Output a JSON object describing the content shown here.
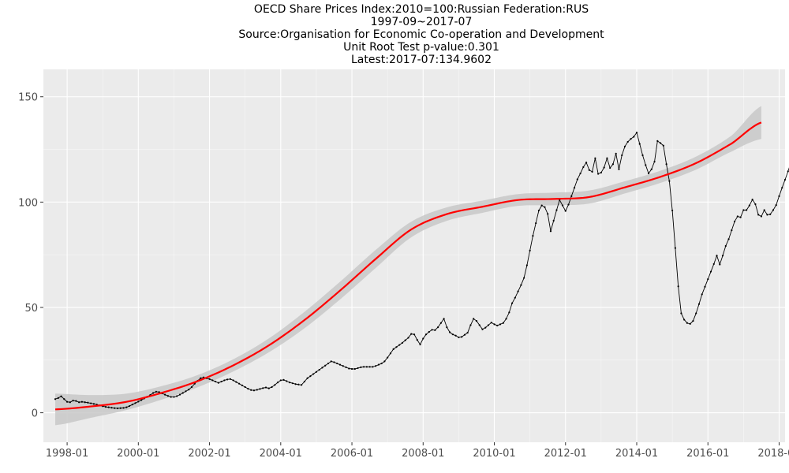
{
  "titles": {
    "line1": "OECD Share Prices Index:2010=100:Russian Federation:RUS",
    "line2": "1997-09~2017-07",
    "line3": "Source:Organisation for Economic Co-operation and Development",
    "line4": "Unit Root Test p-value:0.301",
    "line5": "Latest:2017-07:134.9602"
  },
  "chart_data": {
    "type": "line",
    "title": "OECD Share Prices Index:2010=100:Russian Federation:RUS",
    "xlabel": "",
    "ylabel": "",
    "grid": true,
    "legend": "none",
    "xlim": [
      "1997-05",
      "2018-03"
    ],
    "ylim": [
      -14,
      163
    ],
    "x_ticks": [
      "1998-01",
      "2000-01",
      "2002-01",
      "2004-01",
      "2006-01",
      "2008-01",
      "2010-01",
      "2012-01",
      "2014-01",
      "2016-01",
      "2018-01"
    ],
    "y_ticks": [
      0,
      50,
      100,
      150
    ],
    "series": [
      {
        "color": "#000000",
        "style": "line-with-points",
        "start": "1997-09",
        "freq": "monthly",
        "values": [
          6.5,
          7,
          7.8,
          6.5,
          5.2,
          5,
          5.8,
          5.6,
          5,
          5.2,
          5,
          4.8,
          4.5,
          4.2,
          3.9,
          3.5,
          3.1,
          2.8,
          2.6,
          2.4,
          2.2,
          2.1,
          2.2,
          2.3,
          2.6,
          3.2,
          3.9,
          4.6,
          5.3,
          6,
          6.8,
          7.6,
          8.4,
          9.4,
          10,
          9.8,
          9.2,
          8.6,
          8,
          7.5,
          7.5,
          7.9,
          8.6,
          9.4,
          10.2,
          11,
          12.2,
          13.8,
          15.2,
          16.4,
          16.8,
          16.4,
          16,
          15.4,
          14.8,
          14.2,
          14.8,
          15.4,
          15.8,
          16,
          15.4,
          14.6,
          13.8,
          13,
          12.2,
          11.4,
          10.8,
          10.6,
          10.9,
          11.3,
          11.7,
          12,
          11.6,
          12.2,
          13.2,
          14.4,
          15.4,
          15.6,
          15,
          14.4,
          14,
          13.6,
          13.4,
          13.2,
          14.8,
          16.4,
          17.4,
          18.4,
          19.4,
          20.4,
          21.4,
          22.4,
          23.4,
          24.4,
          24,
          23.4,
          22.8,
          22.2,
          21.6,
          21,
          20.8,
          20.8,
          21.2,
          21.6,
          21.8,
          21.8,
          21.8,
          21.8,
          22.2,
          22.8,
          23.4,
          24.4,
          26.2,
          28.2,
          30.2,
          31.2,
          32.2,
          33.2,
          34.4,
          35.6,
          37.4,
          37.2,
          34.6,
          32.4,
          35.2,
          37.2,
          38.4,
          39.4,
          39.2,
          40.6,
          42.6,
          44.6,
          40.6,
          38.2,
          37.2,
          36.6,
          35.8,
          36,
          37,
          38,
          41.6,
          44.6,
          43.6,
          41.6,
          39.6,
          40.4,
          41.6,
          42.8,
          42,
          41.4,
          42,
          42.6,
          44.6,
          47.6,
          52,
          54.6,
          57.6,
          60.6,
          64,
          70,
          77,
          84,
          90,
          96,
          98.4,
          97.6,
          94.4,
          86.2,
          91.2,
          96.2,
          101,
          98.4,
          95.8,
          98.8,
          102.8,
          106.8,
          110.8,
          113.6,
          116.6,
          118.8,
          115.2,
          114.4,
          120.8,
          113.4,
          114,
          116.4,
          120.8,
          116.2,
          118,
          123,
          115.6,
          122.2,
          126.4,
          128.6,
          130,
          131,
          133,
          127.6,
          122.2,
          117.6,
          113.6,
          115.6,
          119.2,
          129,
          128,
          126.8,
          118,
          110,
          96,
          78.2,
          60,
          47.2,
          44.2,
          42.6,
          42.2,
          43.6,
          47.2,
          51.6,
          56.2,
          59.8,
          63.4,
          67,
          70.6,
          74.6,
          70.4,
          74.6,
          79.2,
          82.4,
          86.6,
          90.8,
          93.2,
          92.8,
          96.2,
          96.2,
          98.4,
          101.2,
          99,
          94,
          93.2,
          96.2,
          94,
          94.2,
          96.2,
          98.6,
          102.8,
          106.8,
          110.6,
          114.6,
          118.8,
          120.6,
          122.4,
          123.6,
          124.6,
          125.4,
          122,
          117.4,
          118,
          116,
          117,
          115.2,
          112,
          107.2,
          102.2,
          99.6,
          98.8,
          98.2,
          101.2,
          98.2,
          101.6,
          104.4,
          108.4,
          110,
          109.6,
          104.6,
          100.2,
          94.8,
          93.2,
          94,
          96.4,
          98.8,
          100.2,
          101.4,
          102.6,
          103.8,
          104.4,
          103.8,
          101.2,
          100.8,
          103.8,
          103.4,
          106.6,
          105.8,
          104.2,
          101.6,
          97.4,
          93.2,
          96.8,
          96.2,
          96,
          100.6,
          102.4,
          102,
          105.2,
          105.2,
          104,
          104.4,
          103,
          103.4,
          100.8,
          96.2,
          92.8,
          94.4,
          94.8,
          96.8,
          99.6,
          101.6,
          104.4,
          103.4,
          100.6,
          97.8,
          96.4,
          99.8,
          98.2,
          96.6,
          98.4,
          101.6,
          106.4,
          104.6,
          102.6,
          108.6,
          117.4,
          122.8,
          118,
          116,
          117.4,
          117,
          116,
          114.4,
          116,
          118.4,
          120.8,
          117.8,
          117.8,
          119.6,
          120.4,
          124.8,
          124,
          122.8,
          119.8,
          124.8,
          127.4,
          130.2,
          133.4,
          132.8,
          132.6,
          134.2,
          133.2,
          135.6,
          137.8,
          140.4,
          138.4,
          141.2,
          139.8,
          147,
          153.4,
          154.4,
          151.6,
          148.8,
          140.8,
          137.2,
          136.2,
          136.2,
          130.2,
          134.96
        ]
      },
      {
        "color": "#ff0000",
        "style": "smooth-with-confidence-band",
        "band_color": "#c8c8c8",
        "x": [
          "1997-09",
          "1998-09",
          "1999-09",
          "2000-09",
          "2001-09",
          "2002-09",
          "2003-09",
          "2004-09",
          "2005-09",
          "2006-09",
          "2007-09",
          "2008-09",
          "2009-09",
          "2010-09",
          "2011-09",
          "2012-09",
          "2013-09",
          "2014-09",
          "2015-09",
          "2016-09",
          "2017-07"
        ],
        "values": [
          1.6,
          3,
          5.2,
          9.5,
          15,
          22.5,
          32,
          44,
          58,
          73,
          87,
          94.3,
          97.8,
          101,
          101.5,
          102.4,
          107,
          112,
          118.5,
          127.8,
          137.8
        ],
        "band_half_width": [
          7.5,
          5.4,
          3.9,
          3.2,
          2.9,
          2.9,
          3.3,
          3.9,
          4.2,
          4.3,
          3.7,
          3.2,
          2.9,
          2.8,
          3,
          3.1,
          2.9,
          2.9,
          3.1,
          3.8,
          7.8
        ]
      }
    ]
  }
}
